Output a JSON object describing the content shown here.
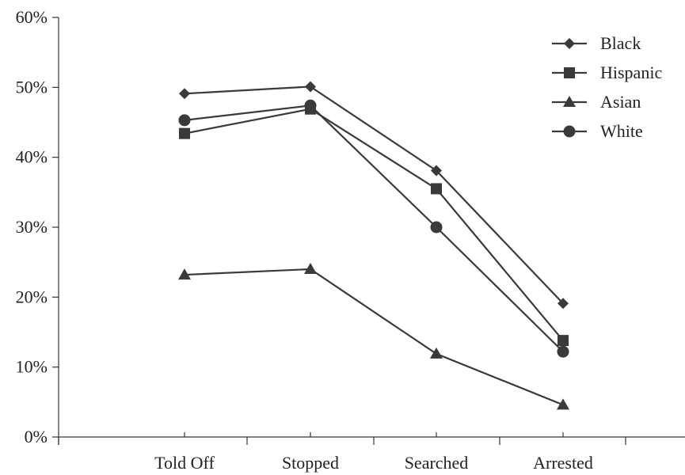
{
  "chart_data": {
    "type": "line",
    "title": "",
    "xlabel": "",
    "ylabel": "",
    "categories": [
      "Told Off",
      "Stopped",
      "Searched",
      "Arrested"
    ],
    "ylim": [
      0,
      60
    ],
    "yticks": [
      "0%",
      "10%",
      "20%",
      "30%",
      "40%",
      "50%",
      "60%"
    ],
    "ytick_values": [
      0,
      10,
      20,
      30,
      40,
      50,
      60
    ],
    "grid": false,
    "legend_position": "top-right",
    "line_color": "#3a3a3a",
    "series": [
      {
        "name": "Black",
        "marker": "diamond",
        "values": [
          49.1,
          50.1,
          38.1,
          19.1
        ]
      },
      {
        "name": "Hispanic",
        "marker": "square",
        "values": [
          43.4,
          46.9,
          35.5,
          13.8
        ]
      },
      {
        "name": "Asian",
        "marker": "triangle",
        "values": [
          23.2,
          24.0,
          11.9,
          4.6
        ]
      },
      {
        "name": "White",
        "marker": "circle",
        "values": [
          45.3,
          47.4,
          30.0,
          12.2
        ]
      }
    ]
  }
}
